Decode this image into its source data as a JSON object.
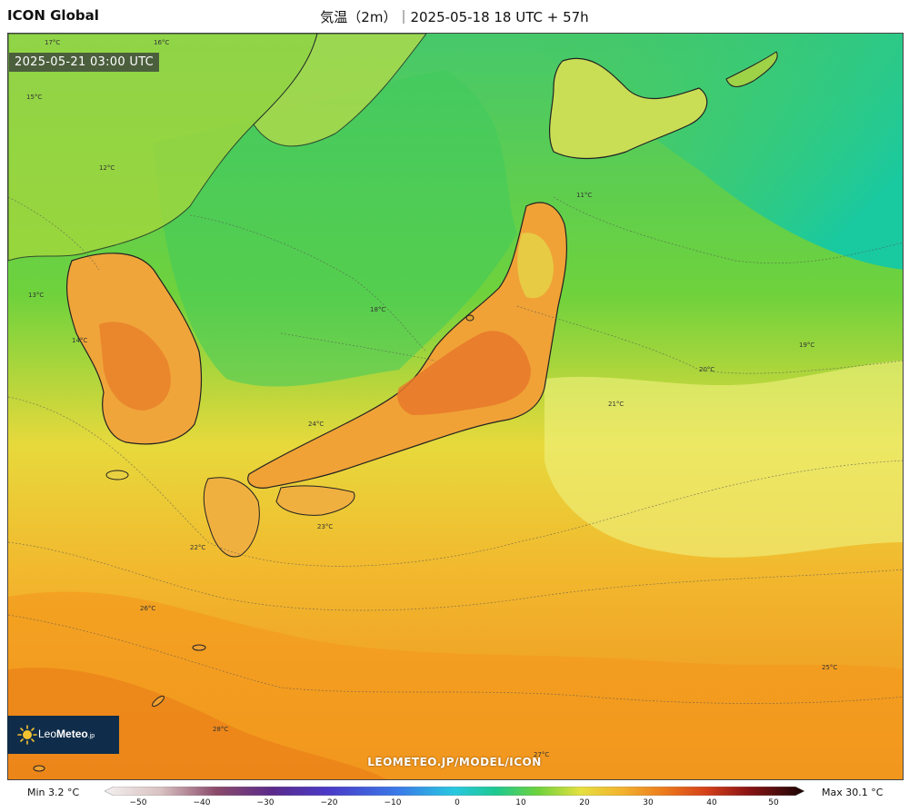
{
  "header": {
    "model": "ICON Global",
    "title": "気温（2m）｜2025-05-18 18 UTC + 57h"
  },
  "map": {
    "valid_time": "2025-05-21 03:00 UTC",
    "watermark": "LEOMETEO.JP/MODEL/ICON",
    "isotherm_labels": [
      "17°C",
      "16°C",
      "15°C",
      "14°C",
      "13°C",
      "12°C",
      "11°C",
      "18°C",
      "19°C",
      "20°C",
      "21°C",
      "22°C",
      "23°C",
      "24°C",
      "25°C",
      "26°C",
      "27°C",
      "28°C"
    ]
  },
  "logo": {
    "name_light": "Leo",
    "name_bold": "Meteo",
    "suffix": ".jp",
    "icon": "sun-icon"
  },
  "legend": {
    "min_label": "Min 3.2 °C",
    "max_label": "Max 30.1 °C",
    "ticks": [
      "−50",
      "−40",
      "−30",
      "−20",
      "−10",
      "0",
      "10",
      "20",
      "30",
      "40",
      "50"
    ],
    "range": [
      -50,
      50
    ]
  },
  "colors": {
    "cold_sea": "#22c98f",
    "mid": "#6fd23c",
    "mild": "#d9e24a",
    "warm": "#f2c232",
    "hot": "#f09a1e",
    "hottest": "#e06a1a"
  }
}
